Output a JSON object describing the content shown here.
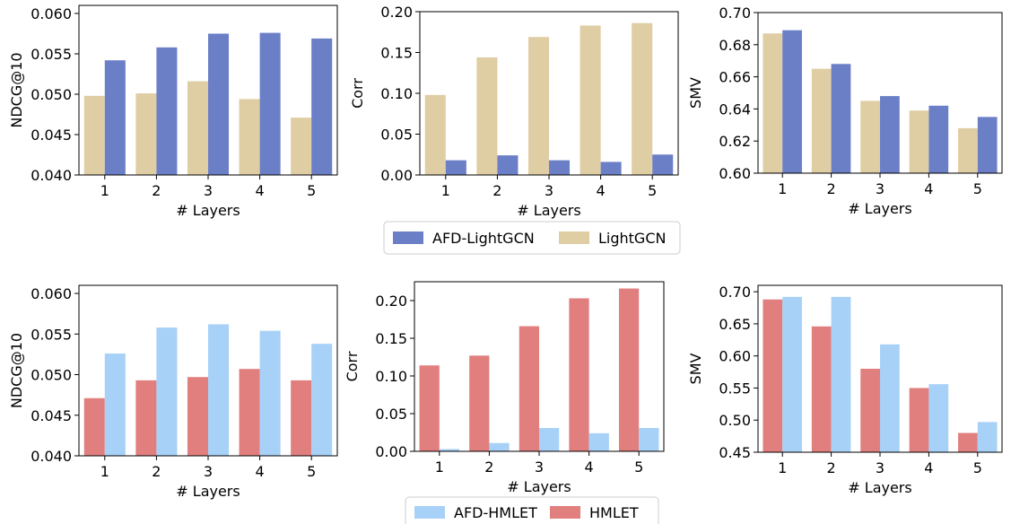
{
  "colors": {
    "afd_lightgcn": "#6b7fc7",
    "lightgcn": "#dfcda3",
    "afd_hmlet": "#a8d1f7",
    "hmlet": "#e17f7f"
  },
  "legends": [
    {
      "entries": [
        {
          "label": "AFD-LightGCN",
          "color_key": "afd_lightgcn"
        },
        {
          "label": "LightGCN",
          "color_key": "lightgcn"
        }
      ]
    },
    {
      "entries": [
        {
          "label": "AFD-HMLET",
          "color_key": "afd_hmlet"
        },
        {
          "label": "HMLET",
          "color_key": "hmlet"
        }
      ]
    }
  ],
  "chart_data": [
    {
      "type": "bar",
      "xlabel": "# Layers",
      "ylabel": "NDCG@10",
      "categories": [
        "1",
        "2",
        "3",
        "4",
        "5"
      ],
      "ylim": [
        0.04,
        0.061
      ],
      "yticks": [
        "0.040",
        "0.045",
        "0.050",
        "0.055",
        "0.060"
      ],
      "series": [
        {
          "name": "LightGCN",
          "color_key": "lightgcn",
          "values": [
            0.0498,
            0.0501,
            0.0516,
            0.0494,
            0.0471
          ]
        },
        {
          "name": "AFD-LightGCN",
          "color_key": "afd_lightgcn",
          "values": [
            0.0542,
            0.0558,
            0.0575,
            0.0576,
            0.0569
          ]
        }
      ]
    },
    {
      "type": "bar",
      "xlabel": "# Layers",
      "ylabel": "Corr",
      "categories": [
        "1",
        "2",
        "3",
        "4",
        "5"
      ],
      "ylim": [
        0.0,
        0.2
      ],
      "yticks": [
        "0.00",
        "0.05",
        "0.10",
        "0.15",
        "0.20"
      ],
      "series": [
        {
          "name": "LightGCN",
          "color_key": "lightgcn",
          "values": [
            0.098,
            0.144,
            0.169,
            0.183,
            0.186
          ]
        },
        {
          "name": "AFD-LightGCN",
          "color_key": "afd_lightgcn",
          "values": [
            0.018,
            0.024,
            0.018,
            0.016,
            0.025
          ]
        }
      ]
    },
    {
      "type": "bar",
      "xlabel": "# Layers",
      "ylabel": "SMV",
      "categories": [
        "1",
        "2",
        "3",
        "4",
        "5"
      ],
      "ylim": [
        0.6,
        0.7
      ],
      "yticks": [
        "0.60",
        "0.62",
        "0.64",
        "0.66",
        "0.68",
        "0.70"
      ],
      "series": [
        {
          "name": "LightGCN",
          "color_key": "lightgcn",
          "values": [
            0.687,
            0.665,
            0.645,
            0.639,
            0.628
          ]
        },
        {
          "name": "AFD-LightGCN",
          "color_key": "afd_lightgcn",
          "values": [
            0.689,
            0.668,
            0.648,
            0.642,
            0.635
          ]
        }
      ]
    },
    {
      "type": "bar",
      "xlabel": "# Layers",
      "ylabel": "NDCG@10",
      "categories": [
        "1",
        "2",
        "3",
        "4",
        "5"
      ],
      "ylim": [
        0.04,
        0.061
      ],
      "yticks": [
        "0.040",
        "0.045",
        "0.050",
        "0.055",
        "0.060"
      ],
      "series": [
        {
          "name": "HMLET",
          "color_key": "hmlet",
          "values": [
            0.0471,
            0.0493,
            0.0497,
            0.0507,
            0.0493
          ]
        },
        {
          "name": "AFD-HMLET",
          "color_key": "afd_hmlet",
          "values": [
            0.0526,
            0.0558,
            0.0562,
            0.0554,
            0.0538
          ]
        }
      ]
    },
    {
      "type": "bar",
      "xlabel": "# Layers",
      "ylabel": "Corr",
      "categories": [
        "1",
        "2",
        "3",
        "4",
        "5"
      ],
      "ylim": [
        0.0,
        0.225
      ],
      "yticks": [
        "0.00",
        "0.05",
        "0.10",
        "0.15",
        "0.20"
      ],
      "series": [
        {
          "name": "HMLET",
          "color_key": "hmlet",
          "values": [
            0.114,
            0.127,
            0.166,
            0.203,
            0.216
          ]
        },
        {
          "name": "AFD-HMLET",
          "color_key": "afd_hmlet",
          "values": [
            0.003,
            0.011,
            0.031,
            0.024,
            0.031
          ]
        }
      ]
    },
    {
      "type": "bar",
      "xlabel": "# Layers",
      "ylabel": "SMV",
      "categories": [
        "1",
        "2",
        "3",
        "4",
        "5"
      ],
      "ylim": [
        0.45,
        0.71
      ],
      "yticks": [
        "0.45",
        "0.50",
        "0.55",
        "0.60",
        "0.65",
        "0.70"
      ],
      "series": [
        {
          "name": "HMLET",
          "color_key": "hmlet",
          "values": [
            0.688,
            0.646,
            0.58,
            0.55,
            0.48
          ]
        },
        {
          "name": "AFD-HMLET",
          "color_key": "afd_hmlet",
          "values": [
            0.692,
            0.692,
            0.618,
            0.556,
            0.497
          ]
        }
      ]
    }
  ]
}
